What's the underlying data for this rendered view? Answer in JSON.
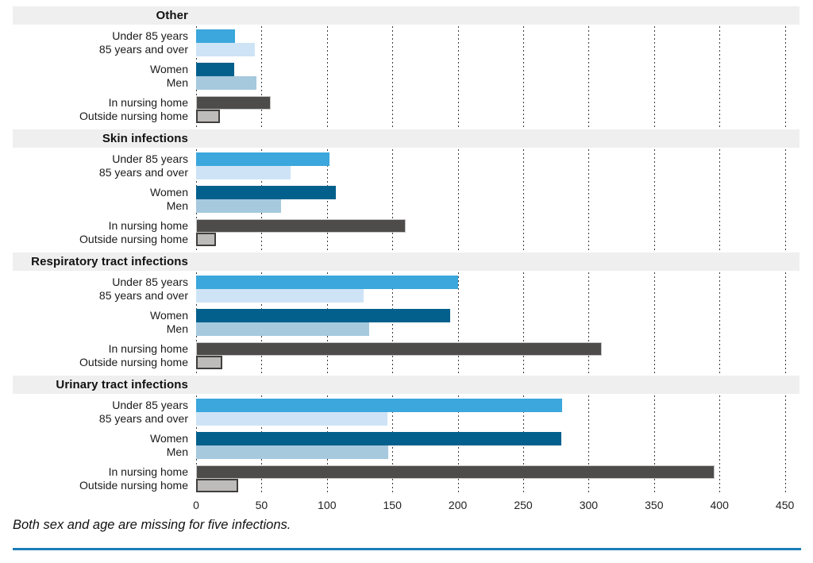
{
  "footnote": "Both sex and age are missing for five infections.",
  "accent_rule_color": "#1b7cb8",
  "chart_data": {
    "type": "bar",
    "orientation": "horizontal",
    "title": "",
    "xlabel": "",
    "ylabel": "",
    "xlim": [
      0,
      450
    ],
    "x_ticks": [
      "0",
      "50",
      "100",
      "150",
      "200",
      "250",
      "300",
      "350",
      "400",
      "450"
    ],
    "grid": "dotted-vertical",
    "legend": "none",
    "series_colors": {
      "under_85": "#3ba7dc",
      "85_and_over": "#cee4f6",
      "women": "#03608c",
      "men": "#a6c9de",
      "in_nursing_home": "#4e4c4b",
      "outside_nursing_home": "#bdbcbb"
    },
    "bar_borders": {
      "in_nursing_home": "#c6c6c6",
      "outside_nursing_home": "#403f3e"
    },
    "sections": [
      {
        "title": "Other",
        "groups": [
          {
            "rows": [
              {
                "label": "Under 85 years",
                "key": "under_85",
                "value": 30
              },
              {
                "label": "85 years and over",
                "key": "85_and_over",
                "value": 45
              }
            ]
          },
          {
            "rows": [
              {
                "label": "Women",
                "key": "women",
                "value": 29
              },
              {
                "label": "Men",
                "key": "men",
                "value": 46
              }
            ]
          },
          {
            "rows": [
              {
                "label": "In nursing home",
                "key": "in_nursing_home",
                "value": 57
              },
              {
                "label": "Outside nursing home",
                "key": "outside_nursing_home",
                "value": 18
              }
            ]
          }
        ]
      },
      {
        "title": "Skin infections",
        "groups": [
          {
            "rows": [
              {
                "label": "Under 85 years",
                "key": "under_85",
                "value": 102
              },
              {
                "label": "85 years and over",
                "key": "85_and_over",
                "value": 72
              }
            ]
          },
          {
            "rows": [
              {
                "label": "Women",
                "key": "women",
                "value": 107
              },
              {
                "label": "Men",
                "key": "men",
                "value": 65
              }
            ]
          },
          {
            "rows": [
              {
                "label": "In nursing home",
                "key": "in_nursing_home",
                "value": 160
              },
              {
                "label": "Outside nursing home",
                "key": "outside_nursing_home",
                "value": 15
              }
            ]
          }
        ]
      },
      {
        "title": "Respiratory tract infections",
        "groups": [
          {
            "rows": [
              {
                "label": "Under 85 years",
                "key": "under_85",
                "value": 200
              },
              {
                "label": "85 years and over",
                "key": "85_and_over",
                "value": 128
              }
            ]
          },
          {
            "rows": [
              {
                "label": "Women",
                "key": "women",
                "value": 194
              },
              {
                "label": "Men",
                "key": "men",
                "value": 132
              }
            ]
          },
          {
            "rows": [
              {
                "label": "In nursing home",
                "key": "in_nursing_home",
                "value": 310
              },
              {
                "label": "Outside nursing home",
                "key": "outside_nursing_home",
                "value": 20
              }
            ]
          }
        ]
      },
      {
        "title": "Urinary tract infections",
        "groups": [
          {
            "rows": [
              {
                "label": "Under 85 years",
                "key": "under_85",
                "value": 280
              },
              {
                "label": "85 years and over",
                "key": "85_and_over",
                "value": 146
              }
            ]
          },
          {
            "rows": [
              {
                "label": "Women",
                "key": "women",
                "value": 279
              },
              {
                "label": "Men",
                "key": "men",
                "value": 147
              }
            ]
          },
          {
            "rows": [
              {
                "label": "In nursing home",
                "key": "in_nursing_home",
                "value": 396
              },
              {
                "label": "Outside nursing home",
                "key": "outside_nursing_home",
                "value": 32
              }
            ]
          }
        ]
      }
    ]
  }
}
